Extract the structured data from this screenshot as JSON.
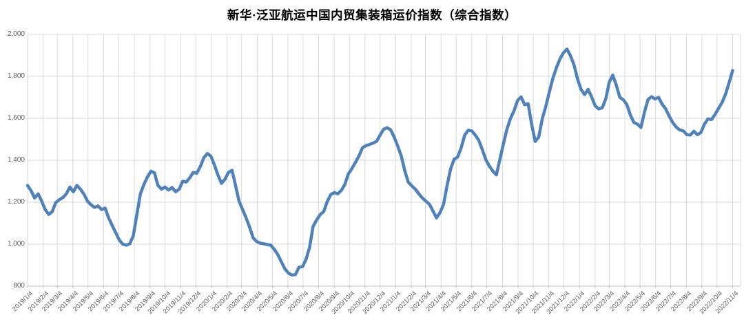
{
  "title": "新华·泛亚航运中国内贸集装箱运价指数（综合指数）",
  "chart_data": {
    "type": "line",
    "title": "新华·泛亚航运中国内贸集装箱运价指数（综合指数）",
    "xlabel": "",
    "ylabel": "",
    "ylim": [
      800,
      2000
    ],
    "y_step": 200,
    "grid": true,
    "legend": false,
    "y_tick_labels": [
      "800",
      "1,000",
      "1,200",
      "1,400",
      "1,600",
      "1,800",
      "2,000"
    ],
    "x_tick_labels": [
      "2019/1/4",
      "2019/2/4",
      "2019/3/4",
      "2019/4/4",
      "2019/5/4",
      "2019/6/4",
      "2019/7/4",
      "2019/8/4",
      "2019/9/4",
      "2019/10/4",
      "2019/11/4",
      "2019/12/4",
      "2020/1/4",
      "2020/2/4",
      "2020/3/4",
      "2020/4/4",
      "2020/5/4",
      "2020/6/4",
      "2020/7/4",
      "2020/8/4",
      "2020/9/4",
      "2020/10/4",
      "2020/11/4",
      "2020/12/4",
      "2021/1/4",
      "2021/2/4",
      "2021/3/4",
      "2021/4/4",
      "2021/5/4",
      "2021/6/4",
      "2021/7/4",
      "2021/8/4",
      "2021/9/4",
      "2021/10/4",
      "2021/11/4",
      "2021/12/4",
      "2022/1/4",
      "2022/2/4",
      "2022/3/4",
      "2022/4/4",
      "2022/5/4",
      "2022/6/4",
      "2022/7/4",
      "2022/8/4",
      "2022/9/4",
      "2022/10/4",
      "2022/11/4"
    ],
    "series": [
      {
        "name": "综合指数",
        "start_date": "2019/1/4",
        "frequency": "weekly",
        "values": [
          1280,
          1255,
          1220,
          1240,
          1205,
          1165,
          1142,
          1155,
          1198,
          1212,
          1222,
          1240,
          1272,
          1250,
          1280,
          1262,
          1238,
          1205,
          1188,
          1175,
          1182,
          1165,
          1172,
          1125,
          1090,
          1055,
          1020,
          1000,
          995,
          1002,
          1040,
          1140,
          1240,
          1285,
          1320,
          1348,
          1340,
          1280,
          1262,
          1272,
          1258,
          1270,
          1250,
          1262,
          1300,
          1296,
          1316,
          1342,
          1338,
          1370,
          1412,
          1432,
          1420,
          1378,
          1330,
          1290,
          1310,
          1342,
          1352,
          1280,
          1205,
          1165,
          1125,
          1080,
          1030,
          1012,
          1005,
          1002,
          998,
          995,
          975,
          950,
          915,
          882,
          862,
          853,
          855,
          890,
          893,
          928,
          985,
          1085,
          1115,
          1141,
          1155,
          1203,
          1236,
          1246,
          1240,
          1256,
          1285,
          1335,
          1360,
          1390,
          1420,
          1460,
          1470,
          1475,
          1482,
          1490,
          1520,
          1548,
          1555,
          1545,
          1510,
          1468,
          1420,
          1350,
          1295,
          1278,
          1262,
          1240,
          1220,
          1205,
          1190,
          1158,
          1125,
          1150,
          1190,
          1280,
          1358,
          1405,
          1415,
          1460,
          1520,
          1543,
          1540,
          1520,
          1495,
          1450,
          1402,
          1372,
          1348,
          1330,
          1405,
          1480,
          1550,
          1600,
          1636,
          1685,
          1702,
          1665,
          1670,
          1570,
          1490,
          1510,
          1598,
          1657,
          1725,
          1790,
          1840,
          1882,
          1912,
          1930,
          1898,
          1855,
          1788,
          1738,
          1713,
          1738,
          1702,
          1660,
          1645,
          1650,
          1692,
          1772,
          1806,
          1758,
          1700,
          1688,
          1665,
          1615,
          1580,
          1572,
          1556,
          1630,
          1690,
          1703,
          1692,
          1700,
          1668,
          1645,
          1610,
          1580,
          1558,
          1545,
          1540,
          1522,
          1520,
          1538,
          1522,
          1532,
          1572,
          1597,
          1594,
          1618,
          1647,
          1675,
          1716,
          1770,
          1828
        ]
      }
    ],
    "styles": {
      "line_color": "#4F81BD",
      "line_width": 4.5,
      "grid_color": "#D9D9D9",
      "axis_color": "#BFBFBF",
      "tick_label_color": "#595959",
      "title_color": "#000000",
      "background": "#FFFFFF"
    }
  }
}
